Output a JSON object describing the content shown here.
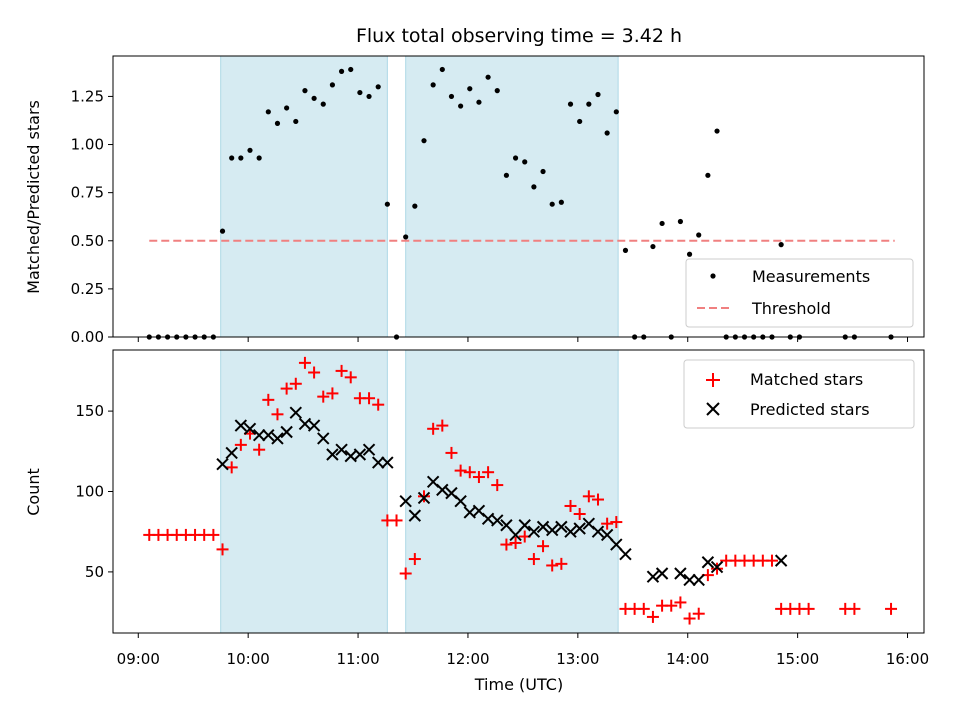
{
  "chart_data": [
    {
      "type": "scatter",
      "title": "Flux total observing time = 3.42 h",
      "xlabel": "",
      "ylabel": "Matched/Predicted stars",
      "xlim_hours": [
        8.77,
        16.15
      ],
      "ylim": [
        0,
        1.46
      ],
      "yticks": [
        "0.00",
        "0.25",
        "0.50",
        "0.75",
        "1.00",
        "1.25"
      ],
      "observing_windows": [
        [
          "09:45",
          "11:16"
        ],
        [
          "11:26",
          "13:22"
        ]
      ],
      "legend": {
        "placement": "lower-right",
        "entries": [
          "Measurements",
          "Threshold"
        ]
      },
      "threshold": {
        "name": "Threshold",
        "value": 0.5,
        "x_range": [
          "09:06",
          "15:53"
        ],
        "color": "#f08080"
      },
      "series": [
        {
          "name": "Measurements",
          "color": "#000000",
          "points": [
            [
              "09:06",
              0
            ],
            [
              "09:11",
              0
            ],
            [
              "09:16",
              0
            ],
            [
              "09:21",
              0
            ],
            [
              "09:26",
              0
            ],
            [
              "09:31",
              0
            ],
            [
              "09:36",
              0
            ],
            [
              "09:41",
              0
            ],
            [
              "09:46",
              0.55
            ],
            [
              "09:51",
              0.93
            ],
            [
              "09:56",
              0.93
            ],
            [
              "10:01",
              0.97
            ],
            [
              "10:06",
              0.93
            ],
            [
              "10:11",
              1.17
            ],
            [
              "10:16",
              1.11
            ],
            [
              "10:21",
              1.19
            ],
            [
              "10:26",
              1.12
            ],
            [
              "10:31",
              1.28
            ],
            [
              "10:36",
              1.24
            ],
            [
              "10:41",
              1.21
            ],
            [
              "10:46",
              1.31
            ],
            [
              "10:51",
              1.38
            ],
            [
              "10:56",
              1.39
            ],
            [
              "11:01",
              1.27
            ],
            [
              "11:06",
              1.25
            ],
            [
              "11:11",
              1.3
            ],
            [
              "11:16",
              0.69
            ],
            [
              "11:21",
              0
            ],
            [
              "11:26",
              0.52
            ],
            [
              "11:31",
              0.68
            ],
            [
              "11:36",
              1.02
            ],
            [
              "11:41",
              1.31
            ],
            [
              "11:46",
              1.39
            ],
            [
              "11:51",
              1.25
            ],
            [
              "11:56",
              1.2
            ],
            [
              "12:01",
              1.29
            ],
            [
              "12:06",
              1.22
            ],
            [
              "12:11",
              1.35
            ],
            [
              "12:16",
              1.28
            ],
            [
              "12:21",
              0.84
            ],
            [
              "12:26",
              0.93
            ],
            [
              "12:31",
              0.91
            ],
            [
              "12:36",
              0.78
            ],
            [
              "12:41",
              0.86
            ],
            [
              "12:46",
              0.69
            ],
            [
              "12:51",
              0.7
            ],
            [
              "12:56",
              1.21
            ],
            [
              "13:01",
              1.12
            ],
            [
              "13:06",
              1.21
            ],
            [
              "13:11",
              1.26
            ],
            [
              "13:16",
              1.06
            ],
            [
              "13:21",
              1.17
            ],
            [
              "13:26",
              0.45
            ],
            [
              "13:31",
              0
            ],
            [
              "13:36",
              0
            ],
            [
              "13:41",
              0.47
            ],
            [
              "13:46",
              0.59
            ],
            [
              "13:51",
              0
            ],
            [
              "13:56",
              0.6
            ],
            [
              "14:01",
              0.43
            ],
            [
              "14:06",
              0.53
            ],
            [
              "14:11",
              0.84
            ],
            [
              "14:16",
              1.07
            ],
            [
              "14:21",
              0
            ],
            [
              "14:26",
              0
            ],
            [
              "14:31",
              0
            ],
            [
              "14:36",
              0
            ],
            [
              "14:41",
              0
            ],
            [
              "14:46",
              0
            ],
            [
              "14:51",
              0.48
            ],
            [
              "14:56",
              0
            ],
            [
              "15:01",
              0
            ],
            [
              "15:26",
              0
            ],
            [
              "15:31",
              0
            ],
            [
              "15:51",
              0
            ]
          ]
        }
      ]
    },
    {
      "type": "scatter",
      "title": "",
      "xlabel": "Time (UTC)",
      "ylabel": "Count",
      "xlim_hours": [
        8.77,
        16.15
      ],
      "ylim": [
        12,
        188
      ],
      "yticks": [
        "50",
        "100",
        "150"
      ],
      "xticks": [
        "09:00",
        "10:00",
        "11:00",
        "12:00",
        "13:00",
        "14:00",
        "15:00",
        "16:00"
      ],
      "observing_windows": [
        [
          "09:45",
          "11:16"
        ],
        [
          "11:26",
          "13:22"
        ]
      ],
      "legend": {
        "placement": "upper-right",
        "entries": [
          "Matched stars",
          "Predicted stars"
        ]
      },
      "series": [
        {
          "name": "Matched stars",
          "marker": "plus",
          "color": "#ff0000",
          "points": [
            [
              "09:06",
              73
            ],
            [
              "09:11",
              73
            ],
            [
              "09:16",
              73
            ],
            [
              "09:21",
              73
            ],
            [
              "09:26",
              73
            ],
            [
              "09:31",
              73
            ],
            [
              "09:36",
              73
            ],
            [
              "09:41",
              73
            ],
            [
              "09:46",
              64
            ],
            [
              "09:51",
              115
            ],
            [
              "09:56",
              129
            ],
            [
              "10:01",
              136
            ],
            [
              "10:06",
              126
            ],
            [
              "10:11",
              157
            ],
            [
              "10:16",
              148
            ],
            [
              "10:21",
              164
            ],
            [
              "10:26",
              167
            ],
            [
              "10:31",
              180
            ],
            [
              "10:36",
              174
            ],
            [
              "10:41",
              159
            ],
            [
              "10:46",
              161
            ],
            [
              "10:51",
              175
            ],
            [
              "10:56",
              171
            ],
            [
              "11:01",
              158
            ],
            [
              "11:06",
              158
            ],
            [
              "11:11",
              154
            ],
            [
              "11:16",
              82
            ],
            [
              "11:21",
              82
            ],
            [
              "11:26",
              49
            ],
            [
              "11:31",
              58
            ],
            [
              "11:36",
              97
            ],
            [
              "11:41",
              139
            ],
            [
              "11:46",
              141
            ],
            [
              "11:51",
              124
            ],
            [
              "11:56",
              113
            ],
            [
              "12:01",
              112
            ],
            [
              "12:06",
              109
            ],
            [
              "12:11",
              112
            ],
            [
              "12:16",
              104
            ],
            [
              "12:21",
              67
            ],
            [
              "12:26",
              68
            ],
            [
              "12:31",
              72
            ],
            [
              "12:36",
              58
            ],
            [
              "12:41",
              66
            ],
            [
              "12:46",
              54
            ],
            [
              "12:51",
              55
            ],
            [
              "12:56",
              91
            ],
            [
              "13:01",
              86
            ],
            [
              "13:06",
              97
            ],
            [
              "13:11",
              95
            ],
            [
              "13:16",
              80
            ],
            [
              "13:21",
              81
            ],
            [
              "13:26",
              27
            ],
            [
              "13:31",
              27
            ],
            [
              "13:36",
              27
            ],
            [
              "13:41",
              22
            ],
            [
              "13:46",
              29
            ],
            [
              "13:51",
              29
            ],
            [
              "13:56",
              31
            ],
            [
              "14:01",
              21
            ],
            [
              "14:06",
              24
            ],
            [
              "14:11",
              48
            ],
            [
              "14:16",
              52
            ],
            [
              "14:21",
              57
            ],
            [
              "14:26",
              57
            ],
            [
              "14:31",
              57
            ],
            [
              "14:36",
              57
            ],
            [
              "14:41",
              57
            ],
            [
              "14:46",
              57
            ],
            [
              "14:51",
              27
            ],
            [
              "14:56",
              27
            ],
            [
              "15:01",
              27
            ],
            [
              "15:06",
              27
            ],
            [
              "15:26",
              27
            ],
            [
              "15:31",
              27
            ],
            [
              "15:51",
              27
            ]
          ]
        },
        {
          "name": "Predicted stars",
          "marker": "x",
          "color": "#000000",
          "points": [
            [
              "09:46",
              117
            ],
            [
              "09:51",
              124
            ],
            [
              "09:56",
              141
            ],
            [
              "10:01",
              139
            ],
            [
              "10:06",
              135
            ],
            [
              "10:11",
              135
            ],
            [
              "10:16",
              133
            ],
            [
              "10:21",
              137
            ],
            [
              "10:26",
              149
            ],
            [
              "10:31",
              142
            ],
            [
              "10:36",
              141
            ],
            [
              "10:41",
              133
            ],
            [
              "10:46",
              123
            ],
            [
              "10:51",
              126
            ],
            [
              "10:56",
              122
            ],
            [
              "11:01",
              123
            ],
            [
              "11:06",
              126
            ],
            [
              "11:11",
              118
            ],
            [
              "11:16",
              118
            ],
            [
              "11:26",
              94
            ],
            [
              "11:31",
              85
            ],
            [
              "11:36",
              96
            ],
            [
              "11:41",
              106
            ],
            [
              "11:46",
              101
            ],
            [
              "11:51",
              99
            ],
            [
              "11:56",
              94
            ],
            [
              "12:01",
              87
            ],
            [
              "12:06",
              88
            ],
            [
              "12:11",
              83
            ],
            [
              "12:16",
              82
            ],
            [
              "12:21",
              79
            ],
            [
              "12:26",
              73
            ],
            [
              "12:31",
              79
            ],
            [
              "12:36",
              75
            ],
            [
              "12:41",
              78
            ],
            [
              "12:46",
              76
            ],
            [
              "12:51",
              78
            ],
            [
              "12:56",
              75
            ],
            [
              "13:01",
              77
            ],
            [
              "13:06",
              80
            ],
            [
              "13:11",
              75
            ],
            [
              "13:16",
              73
            ],
            [
              "13:21",
              67
            ],
            [
              "13:26",
              61
            ],
            [
              "13:41",
              47
            ],
            [
              "13:46",
              49
            ],
            [
              "13:56",
              49
            ],
            [
              "14:01",
              45
            ],
            [
              "14:06",
              45
            ],
            [
              "14:11",
              56
            ],
            [
              "14:16",
              53
            ],
            [
              "14:51",
              57
            ]
          ]
        }
      ]
    }
  ]
}
